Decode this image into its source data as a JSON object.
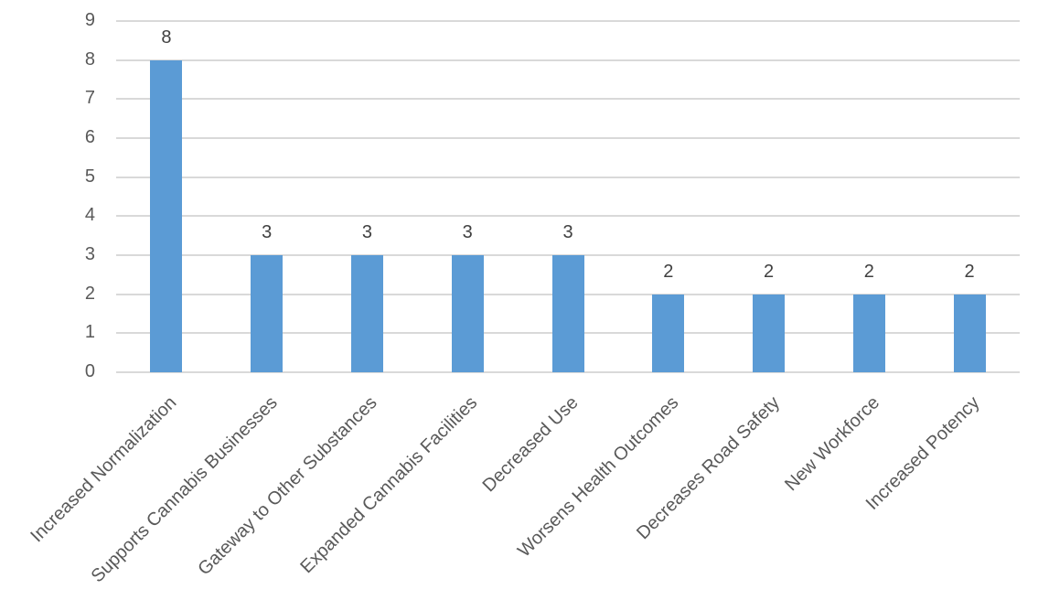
{
  "chart_data": {
    "type": "bar",
    "title": "",
    "xlabel": "",
    "ylabel": "",
    "ylim": [
      0,
      9
    ],
    "yticks": [
      "0",
      "1",
      "2",
      "3",
      "4",
      "5",
      "6",
      "7",
      "8",
      "9"
    ],
    "grid": true,
    "legend": null,
    "bar_color": "#5b9bd5",
    "categories": [
      "Increased Normalization",
      "Supports Cannabis Businesses",
      "Gateway to Other Substances",
      "Expanded Cannabis Facilities",
      "Decreased Use",
      "Worsens Health Outcomes",
      "Decreases Road Safety",
      "New Workforce",
      "Increased Potency"
    ],
    "values": [
      8,
      3,
      3,
      3,
      3,
      2,
      2,
      2,
      2
    ],
    "data_labels": [
      "8",
      "3",
      "3",
      "3",
      "3",
      "2",
      "2",
      "2",
      "2"
    ]
  }
}
